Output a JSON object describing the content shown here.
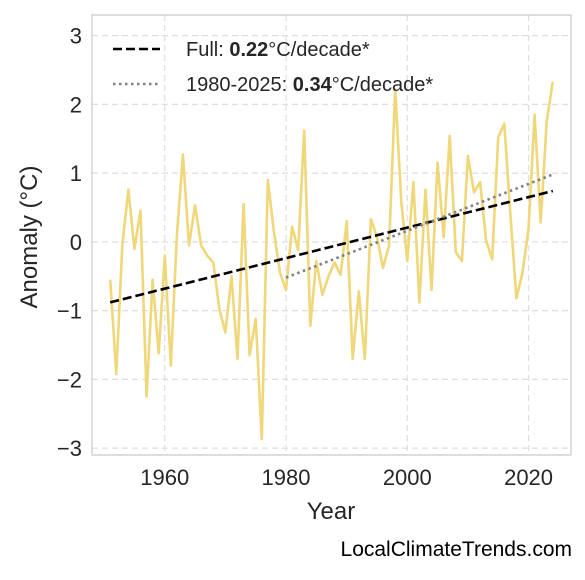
{
  "credit": "LocalClimateTrends.com",
  "chart_data": {
    "type": "line",
    "xlabel": "Year",
    "ylabel": "Anomaly (°C)",
    "xlim": [
      1948,
      2027
    ],
    "ylim": [
      -3.1,
      3.3
    ],
    "xticks": [
      1960,
      1980,
      2000,
      2020
    ],
    "yticks": [
      -3,
      -2,
      -1,
      0,
      1,
      2,
      3
    ],
    "grid": true,
    "legend_position": "top-left",
    "legend": [
      {
        "prefix": "Full: ",
        "value": "0.22",
        "suffix": "°C/decade*",
        "style": "dashed",
        "color": "#000000"
      },
      {
        "prefix": "1980-2025: ",
        "value": "0.34",
        "suffix": "°C/decade*",
        "style": "dotted",
        "color": "#808080"
      }
    ],
    "series": [
      {
        "color": "#f0d77a",
        "x": [
          1951,
          1952,
          1953,
          1954,
          1955,
          1956,
          1957,
          1958,
          1959,
          1960,
          1961,
          1962,
          1963,
          1964,
          1965,
          1966,
          1967,
          1968,
          1969,
          1970,
          1971,
          1972,
          1973,
          1974,
          1975,
          1976,
          1977,
          1978,
          1979,
          1980,
          1981,
          1982,
          1983,
          1984,
          1985,
          1986,
          1987,
          1988,
          1989,
          1990,
          1991,
          1992,
          1993,
          1994,
          1995,
          1996,
          1997,
          1998,
          1999,
          2000,
          2001,
          2002,
          2003,
          2004,
          2005,
          2006,
          2007,
          2008,
          2009,
          2010,
          2011,
          2012,
          2013,
          2014,
          2015,
          2016,
          2017,
          2018,
          2019,
          2020,
          2021,
          2022,
          2023,
          2024
        ],
        "y": [
          -0.55,
          -1.92,
          -0.05,
          0.76,
          -0.1,
          0.46,
          -2.25,
          -0.55,
          -1.62,
          -0.2,
          -1.8,
          0.1,
          1.27,
          -0.05,
          0.53,
          -0.05,
          -0.2,
          -0.3,
          -0.97,
          -1.32,
          -0.5,
          -1.7,
          0.55,
          -1.65,
          -1.12,
          -2.87,
          0.9,
          0.15,
          -0.45,
          -0.7,
          0.22,
          -0.12,
          1.62,
          -1.22,
          -0.28,
          -0.77,
          -0.5,
          -0.3,
          -0.48,
          0.3,
          -1.7,
          -0.72,
          -1.7,
          0.33,
          0.07,
          -0.38,
          -0.05,
          2.22,
          0.6,
          -0.28,
          0.87,
          -0.88,
          0.76,
          -0.7,
          1.15,
          0.07,
          1.54,
          -0.15,
          -0.28,
          1.25,
          0.72,
          0.87,
          0.02,
          -0.25,
          1.52,
          1.72,
          0.4,
          -0.82,
          -0.45,
          0.2,
          1.85,
          0.28,
          1.75,
          2.33
        ]
      }
    ],
    "trend_full": {
      "x": [
        1951,
        2024
      ],
      "y": [
        -0.88,
        0.74
      ],
      "color": "#000000"
    },
    "trend_1980": {
      "x": [
        1980,
        2024
      ],
      "y": [
        -0.52,
        0.98
      ],
      "color": "#808080"
    }
  }
}
